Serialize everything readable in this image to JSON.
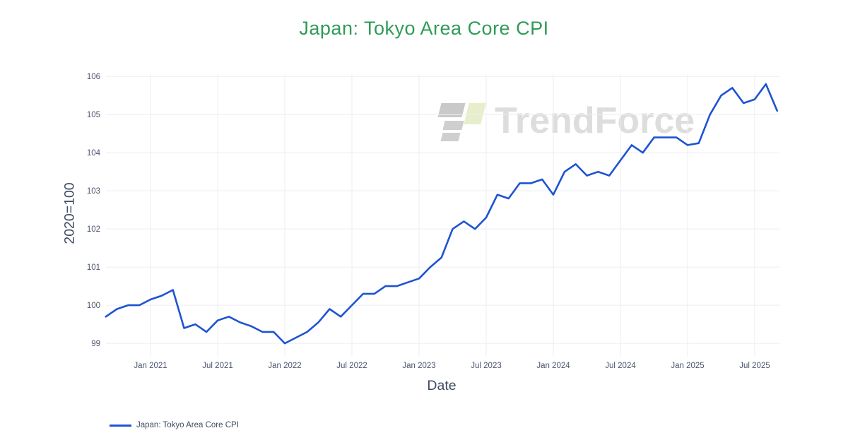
{
  "chart": {
    "title": "Japan: Tokyo Area Core CPI",
    "title_color": "#2e9b57",
    "x_axis_title": "Date",
    "y_axis_title": "2020=100",
    "line_color": "#1d53d3",
    "grid_color": "#ebeef2",
    "tick_label_color": "#4a556b",
    "axis_title_color": "#3e4a63",
    "background_color": "#ffffff"
  },
  "legend": {
    "label": "Japan: Tokyo Area Core CPI"
  },
  "watermark": {
    "text": "TrendForce"
  },
  "chart_data": {
    "type": "line",
    "title": "Japan: Tokyo Area Core CPI",
    "xlabel": "Date",
    "ylabel": "2020=100",
    "legend_entries": [
      "Japan: Tokyo Area Core CPI"
    ],
    "legend_position": "bottom-left",
    "grid": true,
    "ylim": [
      98.65,
      106.06
    ],
    "yticks": [
      99,
      100,
      101,
      102,
      103,
      104,
      105,
      106
    ],
    "xticks": [
      {
        "index": 4,
        "label": "Jan 2021"
      },
      {
        "index": 10,
        "label": "Jul 2021"
      },
      {
        "index": 16,
        "label": "Jan 2022"
      },
      {
        "index": 22,
        "label": "Jul 2022"
      },
      {
        "index": 28,
        "label": "Jan 2023"
      },
      {
        "index": 34,
        "label": "Jul 2023"
      },
      {
        "index": 40,
        "label": "Jan 2024"
      },
      {
        "index": 46,
        "label": "Jul 2024"
      },
      {
        "index": 52,
        "label": "Jan 2025"
      },
      {
        "index": 58,
        "label": "Jul 2025"
      }
    ],
    "x": [
      "2020-09",
      "2020-10",
      "2020-11",
      "2020-12",
      "2021-01",
      "2021-02",
      "2021-03",
      "2021-04",
      "2021-05",
      "2021-06",
      "2021-07",
      "2021-08",
      "2021-09",
      "2021-10",
      "2021-11",
      "2021-12",
      "2022-01",
      "2022-02",
      "2022-03",
      "2022-04",
      "2022-05",
      "2022-06",
      "2022-07",
      "2022-08",
      "2022-09",
      "2022-10",
      "2022-11",
      "2022-12",
      "2023-01",
      "2023-02",
      "2023-03",
      "2023-04",
      "2023-05",
      "2023-06",
      "2023-07",
      "2023-08",
      "2023-09",
      "2023-10",
      "2023-11",
      "2023-12",
      "2024-01",
      "2024-02",
      "2024-03",
      "2024-04",
      "2024-05",
      "2024-06",
      "2024-07",
      "2024-08",
      "2024-09",
      "2024-10",
      "2024-11",
      "2024-12",
      "2025-01",
      "2025-02",
      "2025-03",
      "2025-04",
      "2025-05",
      "2025-06",
      "2025-07",
      "2025-08",
      "2025-09"
    ],
    "values": [
      99.7,
      99.9,
      100.0,
      100.0,
      100.15,
      100.25,
      100.4,
      99.4,
      99.5,
      99.3,
      99.6,
      99.7,
      99.55,
      99.45,
      99.3,
      99.3,
      99.0,
      99.15,
      99.3,
      99.55,
      99.9,
      99.7,
      100.0,
      100.3,
      100.3,
      100.5,
      100.5,
      100.6,
      100.7,
      101.0,
      101.25,
      102.0,
      102.2,
      102.0,
      102.3,
      102.9,
      102.8,
      103.2,
      103.2,
      103.3,
      102.9,
      103.5,
      103.7,
      103.4,
      103.5,
      103.4,
      103.8,
      104.2,
      104.0,
      104.4,
      104.4,
      104.4,
      104.2,
      104.25,
      105.0,
      105.5,
      105.7,
      105.3,
      105.4,
      105.8,
      105.1
    ]
  }
}
